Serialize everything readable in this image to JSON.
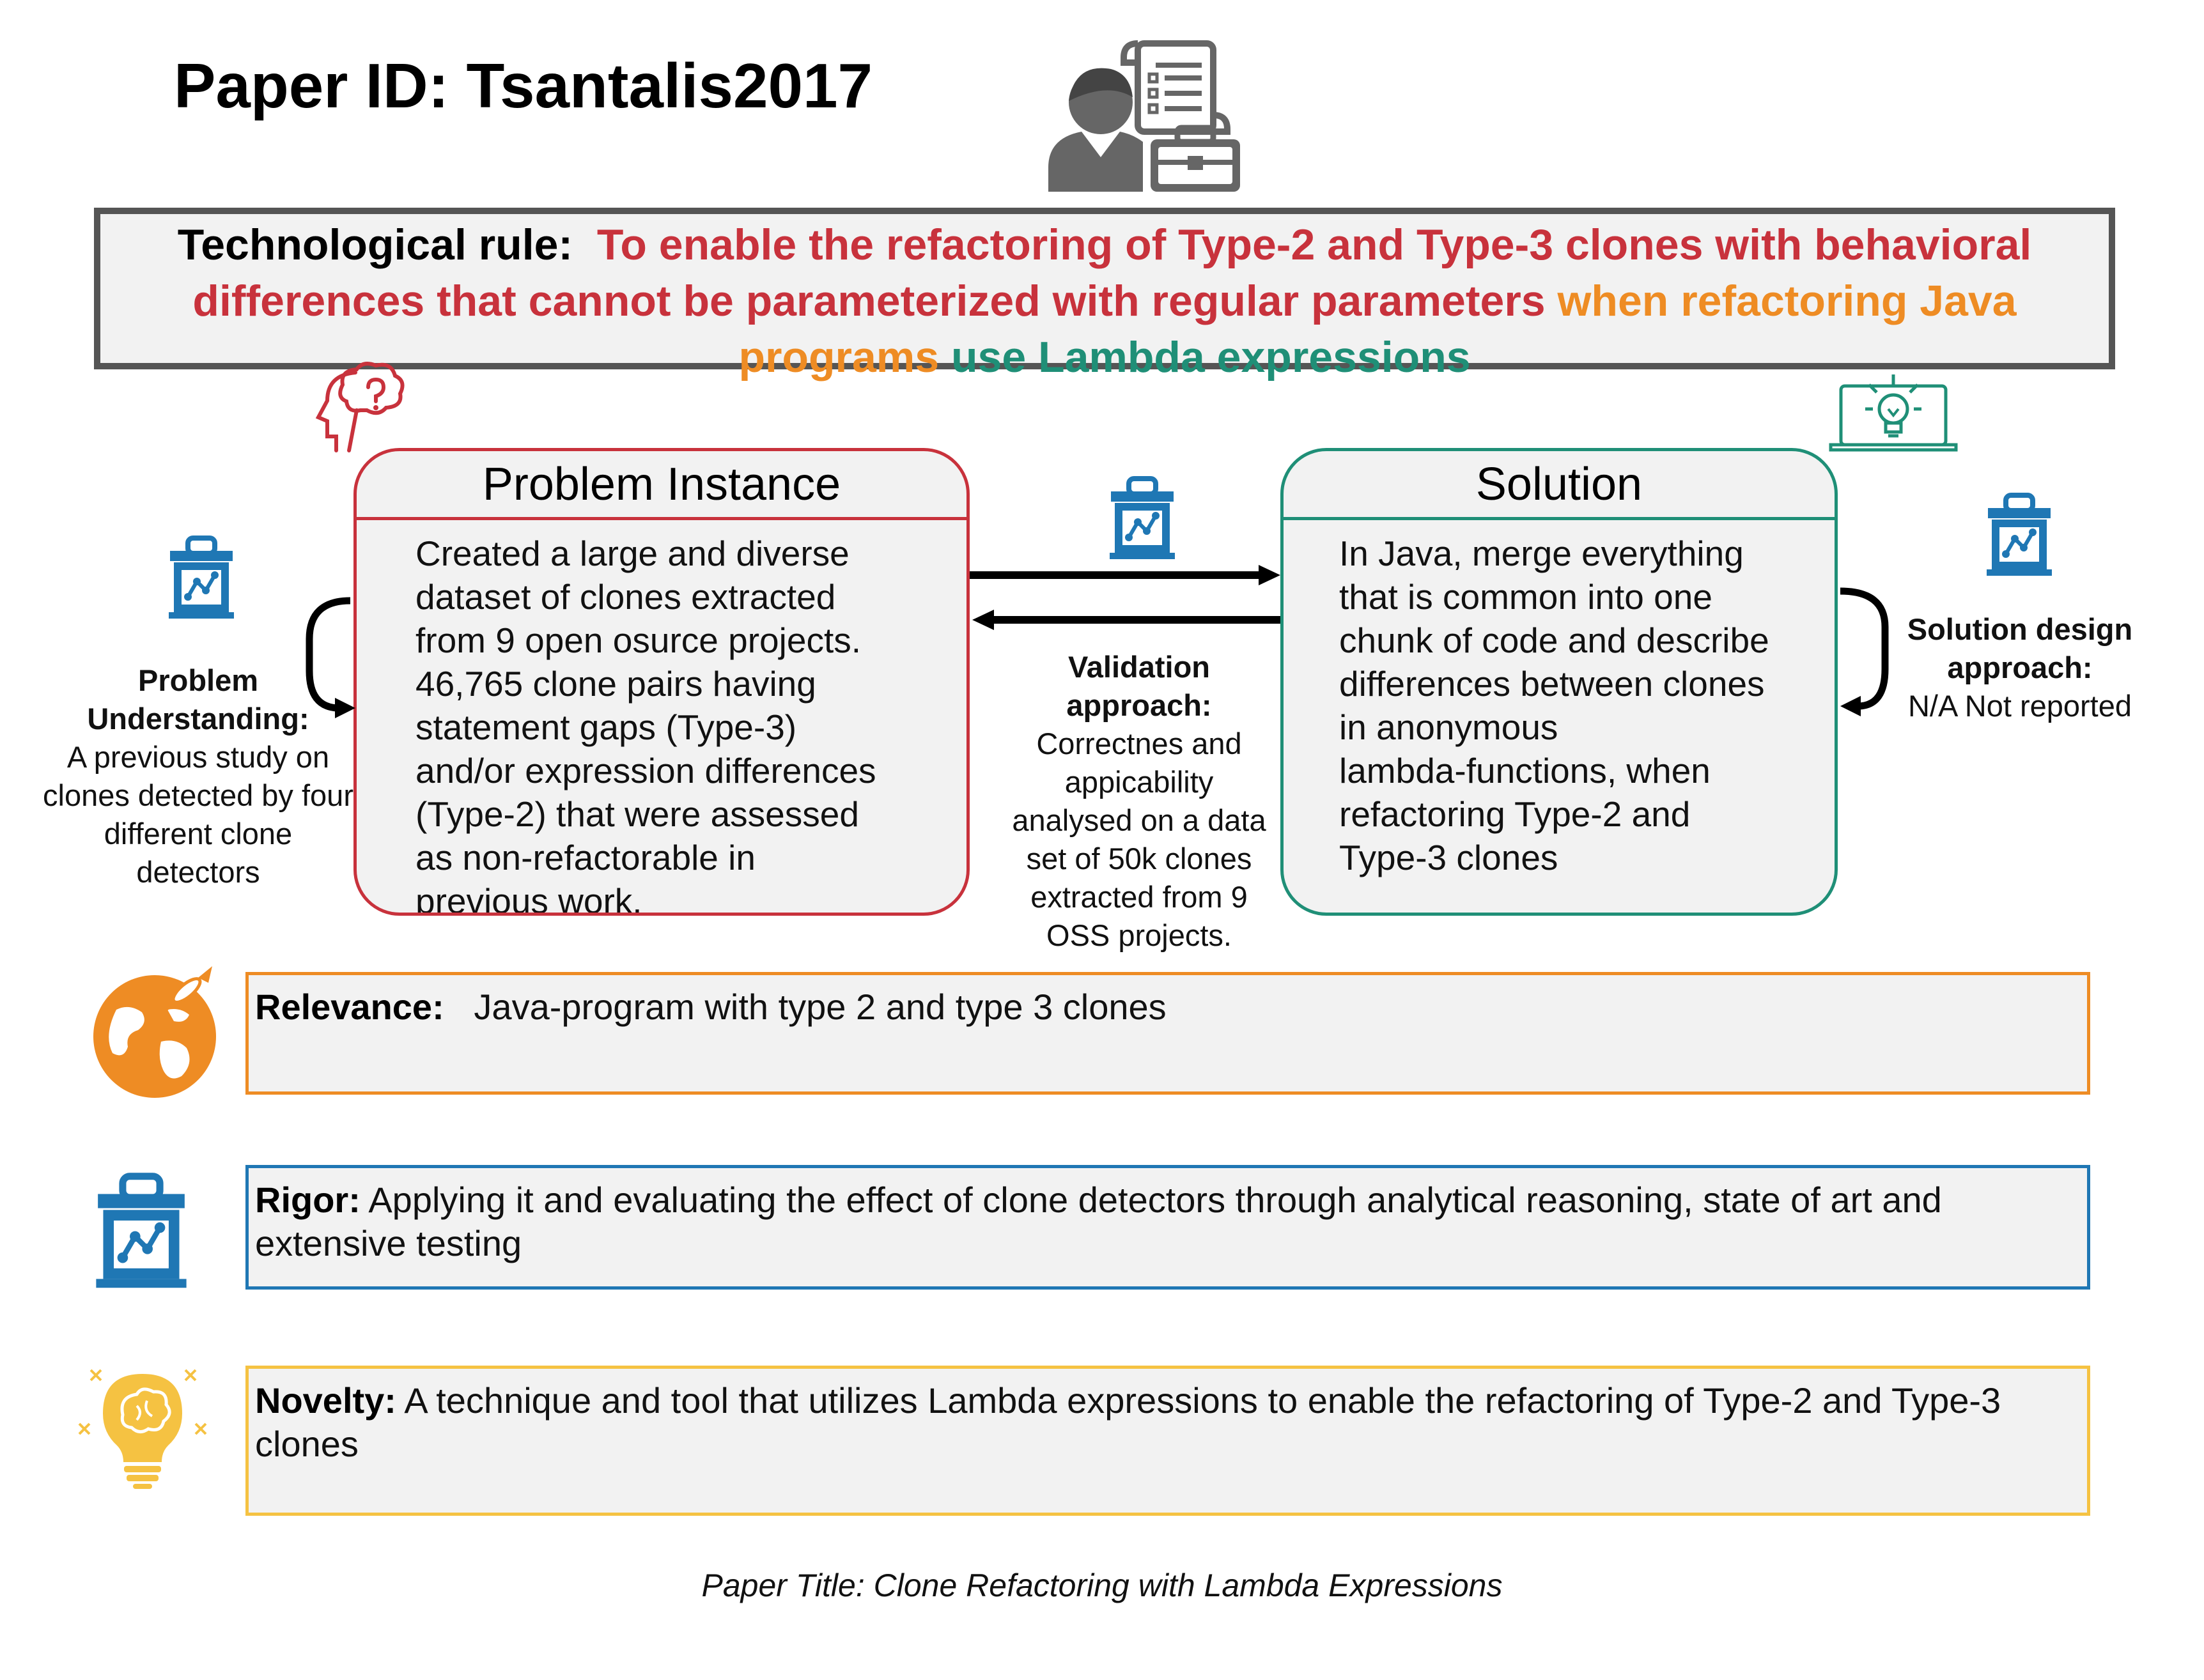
{
  "header": {
    "title": "Paper ID: Tsantalis2017"
  },
  "technological_rule": {
    "label": "Technological rule:",
    "part_red": "To enable the refactoring of Type-2 and Type-3 clones with behavioral differences that cannot be parameterized with regular parameters",
    "part_orange": "when refactoring Java programs",
    "part_green": "use Lambda expressions"
  },
  "problem_instance": {
    "title": "Problem Instance",
    "lines": [
      "Created a large and diverse",
      "dataset of clones extracted",
      "from 9 open osurce projects.",
      "46,765 clone pairs having",
      "statement gaps (Type-3)",
      "and/or expression differences",
      "(Type-2) that were assessed",
      "as non-refactorable in",
      "previous work."
    ]
  },
  "solution": {
    "title": "Solution",
    "lines": [
      "In Java, merge everything",
      "that is common into one",
      "chunk of code and describe",
      "differences between clones",
      "in anonymous",
      "lambda-functions, when",
      "refactoring Type-2 and",
      "Type-3 clones"
    ]
  },
  "problem_understanding": {
    "label_lines": [
      "Problem",
      "Understanding:"
    ],
    "text_lines": [
      "A previous study on",
      "clones detected by four",
      "different clone",
      "detectors"
    ]
  },
  "validation": {
    "label_lines": [
      "Validation",
      "approach:"
    ],
    "text_lines": [
      "Correctnes and",
      "appicability",
      "analysed on a data",
      "set of 50k clones",
      "extracted from 9",
      "OSS projects."
    ]
  },
  "solution_design": {
    "label_lines": [
      "Solution design",
      "approach:"
    ],
    "text": "N/A Not reported"
  },
  "relevance": {
    "label": "Relevance:",
    "text": "Java-program with type 2 and type 3 clones"
  },
  "rigor": {
    "label": "Rigor:",
    "text": "Applying it and evaluating the effect of clone detectors through analytical reasoning, state of art and extensive testing"
  },
  "novelty": {
    "label": "Novelty:",
    "text": "A technique and tool that utilizes Lambda expressions to enable the refactoring of Type-2 and Type-3 clones"
  },
  "footer": {
    "paper_title": "Paper Title:  Clone Refactoring with Lambda Expressions"
  },
  "icons": {
    "header": "researcher-with-documents-icon",
    "problem": "thinking-head-icon",
    "solution": "laptop-lightbulb-icon",
    "validation": "chart-toolbox-icon",
    "relevance": "globe-rocket-icon",
    "novelty": "brain-lightbulb-icon"
  },
  "colors": {
    "red": "#c8323c",
    "orange": "#ee8c24",
    "green": "#1f8f77",
    "blue": "#1f77b4",
    "yellow": "#f5c242",
    "gray_border": "#555555",
    "box_fill": "#f2f2f2"
  }
}
